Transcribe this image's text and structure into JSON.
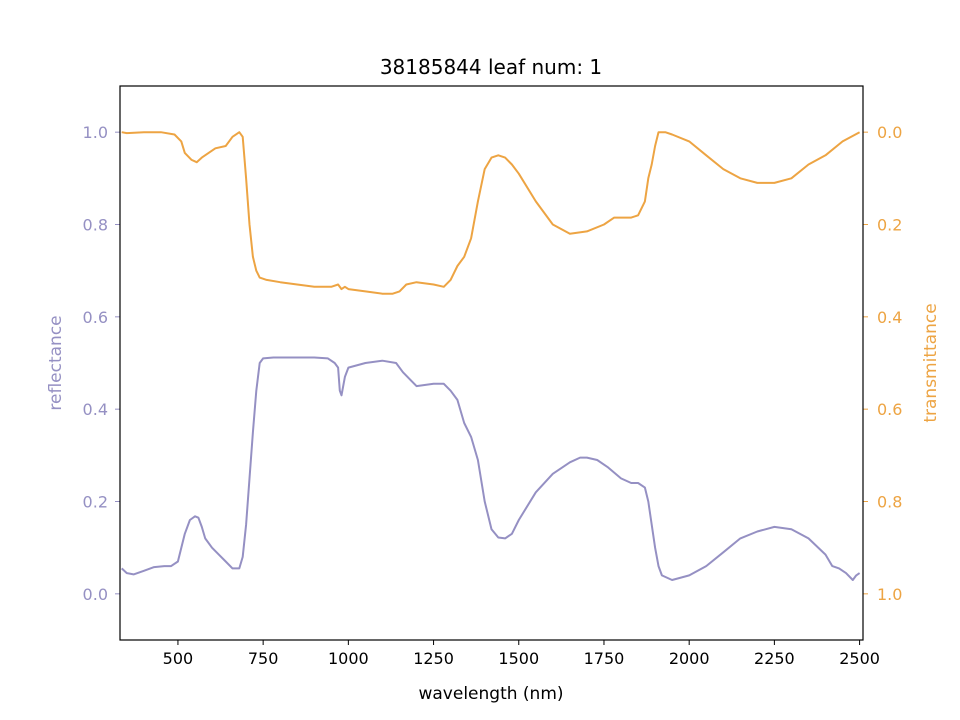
{
  "chart_data": {
    "type": "line",
    "title": "38185844 leaf num: 1",
    "xlabel": "wavelength (nm)",
    "ylabel_left": "reflectance",
    "ylabel_right": "transmittance",
    "xlim": [
      330,
      2510
    ],
    "ylim_left": [
      -0.1,
      1.1
    ],
    "ylim_right_inverted": [
      1.1,
      -0.1
    ],
    "x_ticks": [
      500,
      750,
      1000,
      1250,
      1500,
      1750,
      2000,
      2250,
      2500
    ],
    "x_tick_labels": [
      "500",
      "750",
      "1000",
      "1250",
      "1500",
      "1750",
      "2000",
      "2250",
      "2500"
    ],
    "y_left_ticks": [
      0.0,
      0.2,
      0.4,
      0.6,
      0.8,
      1.0
    ],
    "y_left_tick_labels": [
      "0.0",
      "0.2",
      "0.4",
      "0.6",
      "0.8",
      "1.0"
    ],
    "y_right_ticks": [
      0.0,
      0.2,
      0.4,
      0.6,
      0.8,
      1.0
    ],
    "y_right_tick_labels": [
      "0.0",
      "0.2",
      "0.4",
      "0.6",
      "0.8",
      "1.0"
    ],
    "grid": false,
    "colors": {
      "reflectance": "#9590c3",
      "transmittance": "#eda443",
      "text": "#000000"
    },
    "series": [
      {
        "axis": "left",
        "x": [
          335,
          350,
          370,
          400,
          430,
          460,
          480,
          500,
          520,
          535,
          550,
          560,
          570,
          580,
          600,
          620,
          640,
          660,
          680,
          690,
          700,
          710,
          720,
          730,
          740,
          750,
          780,
          850,
          900,
          940,
          960,
          970,
          975,
          980,
          990,
          1000,
          1050,
          1100,
          1140,
          1160,
          1200,
          1250,
          1280,
          1300,
          1320,
          1340,
          1360,
          1380,
          1400,
          1420,
          1440,
          1460,
          1480,
          1500,
          1550,
          1600,
          1650,
          1680,
          1700,
          1730,
          1760,
          1800,
          1830,
          1850,
          1870,
          1880,
          1890,
          1900,
          1910,
          1920,
          1950,
          2000,
          2050,
          2100,
          2150,
          2200,
          2250,
          2300,
          2350,
          2400,
          2420,
          2440,
          2460,
          2480,
          2490,
          2500
        ],
        "y": [
          0.055,
          0.045,
          0.042,
          0.05,
          0.058,
          0.06,
          0.06,
          0.07,
          0.13,
          0.16,
          0.168,
          0.165,
          0.145,
          0.12,
          0.1,
          0.085,
          0.07,
          0.055,
          0.055,
          0.08,
          0.15,
          0.25,
          0.35,
          0.44,
          0.5,
          0.51,
          0.512,
          0.512,
          0.512,
          0.51,
          0.5,
          0.49,
          0.44,
          0.43,
          0.47,
          0.49,
          0.5,
          0.505,
          0.5,
          0.48,
          0.45,
          0.455,
          0.455,
          0.44,
          0.42,
          0.37,
          0.34,
          0.29,
          0.2,
          0.14,
          0.122,
          0.12,
          0.13,
          0.16,
          0.22,
          0.26,
          0.285,
          0.295,
          0.295,
          0.29,
          0.275,
          0.25,
          0.24,
          0.24,
          0.23,
          0.2,
          0.15,
          0.1,
          0.06,
          0.04,
          0.03,
          0.04,
          0.06,
          0.09,
          0.12,
          0.135,
          0.145,
          0.14,
          0.12,
          0.085,
          0.06,
          0.055,
          0.045,
          0.03,
          0.04,
          0.045
        ]
      },
      {
        "axis": "right",
        "x": [
          335,
          350,
          400,
          450,
          490,
          510,
          520,
          540,
          555,
          570,
          590,
          610,
          640,
          660,
          680,
          690,
          700,
          710,
          720,
          730,
          740,
          760,
          800,
          850,
          900,
          950,
          970,
          980,
          990,
          1000,
          1050,
          1100,
          1130,
          1150,
          1170,
          1200,
          1250,
          1280,
          1300,
          1320,
          1340,
          1360,
          1380,
          1400,
          1420,
          1440,
          1460,
          1480,
          1500,
          1550,
          1600,
          1650,
          1700,
          1750,
          1780,
          1800,
          1830,
          1850,
          1870,
          1880,
          1890,
          1900,
          1910,
          1930,
          1950,
          2000,
          2050,
          2100,
          2150,
          2200,
          2250,
          2300,
          2350,
          2400,
          2450,
          2500
        ],
        "y": [
          0.0,
          0.002,
          0.0,
          0.0,
          0.005,
          0.02,
          0.045,
          0.06,
          0.065,
          0.055,
          0.045,
          0.035,
          0.03,
          0.01,
          0.0,
          0.01,
          0.1,
          0.2,
          0.27,
          0.3,
          0.315,
          0.32,
          0.325,
          0.33,
          0.335,
          0.335,
          0.33,
          0.34,
          0.335,
          0.34,
          0.345,
          0.35,
          0.35,
          0.345,
          0.33,
          0.325,
          0.33,
          0.335,
          0.32,
          0.29,
          0.27,
          0.23,
          0.15,
          0.08,
          0.055,
          0.05,
          0.055,
          0.07,
          0.09,
          0.15,
          0.2,
          0.22,
          0.215,
          0.2,
          0.185,
          0.185,
          0.185,
          0.18,
          0.15,
          0.1,
          0.07,
          0.03,
          0.0,
          0.0,
          0.005,
          0.02,
          0.05,
          0.08,
          0.1,
          0.11,
          0.11,
          0.1,
          0.07,
          0.05,
          0.02,
          0.0
        ]
      }
    ]
  }
}
